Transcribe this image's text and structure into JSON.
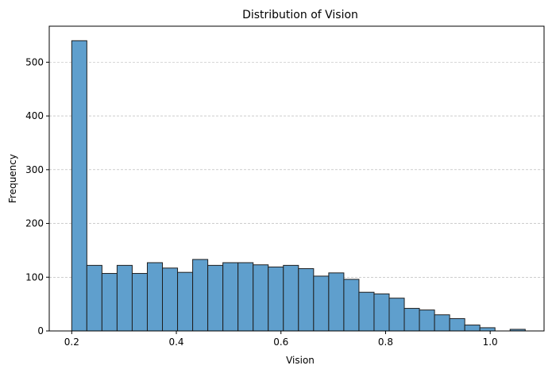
{
  "chart_data": {
    "type": "bar",
    "subtype": "histogram",
    "title": "Distribution of Vision",
    "xlabel": "Vision",
    "ylabel": "Frequency",
    "bin_start": 0.2,
    "bin_width": 0.0289,
    "values": [
      540,
      122,
      107,
      122,
      107,
      127,
      117,
      109,
      133,
      122,
      127,
      127,
      123,
      119,
      122,
      116,
      102,
      108,
      96,
      72,
      69,
      61,
      42,
      39,
      30,
      23,
      11,
      6,
      0,
      3
    ],
    "xlim": [
      0.157,
      1.103
    ],
    "ylim": [
      0,
      567
    ],
    "xticks": [
      0.2,
      0.4,
      0.6,
      0.8,
      1.0
    ],
    "xtick_labels": [
      "0.2",
      "0.4",
      "0.6",
      "0.8",
      "1.0"
    ],
    "yticks": [
      0,
      100,
      200,
      300,
      400,
      500
    ],
    "ytick_labels": [
      "0",
      "100",
      "200",
      "300",
      "400",
      "500"
    ],
    "grid": "y-dashed",
    "bar_color": "#5f9fcd",
    "bar_edge_color": "#1f1f1f"
  }
}
